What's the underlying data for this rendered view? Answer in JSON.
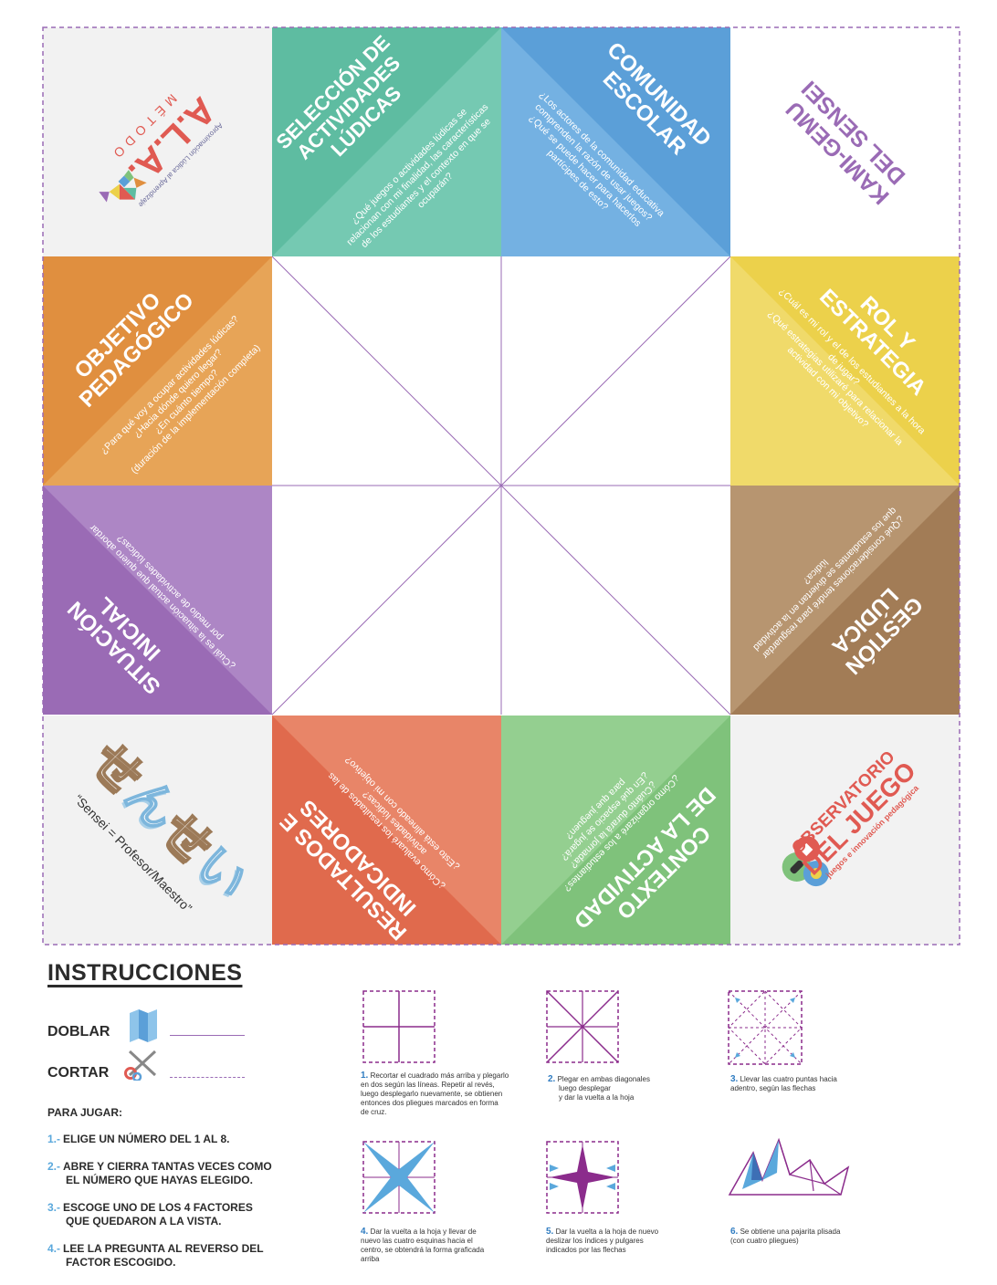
{
  "tiles": {
    "seleccion": {
      "title": [
        "SELECCIÓN DE",
        "ACTIVIDADES",
        "LÚDICAS"
      ],
      "question": [
        "¿Qué juegos o actividades lúdicas se",
        "relacionan con mi finalidad, las características",
        "de los estudiantes y el contexto en que se",
        "ocuparán?"
      ]
    },
    "comunidad": {
      "title": [
        "COMUNIDAD",
        "ESCOLAR"
      ],
      "question": [
        "¿Los actores de la comunidad educativa",
        "comprenden la razón de usar juegos?",
        "¿Qué se puede hacer para hacerlos",
        "partícipes de esto?"
      ]
    },
    "kami": {
      "title": [
        "KAMI-GEMU",
        "DEL SENSEI"
      ]
    },
    "objetivo": {
      "title": [
        "OBJETIVO",
        "PEDAGÓGICO"
      ],
      "question": [
        "¿Para qué voy a ocupar actividades lúdicas?",
        "¿Hacia dónde quiero llegar?",
        "¿En cuánto tiempo?",
        "(duración de la implementación completa)"
      ]
    },
    "rol": {
      "title": [
        "ROL Y",
        "ESTRATEGIA"
      ],
      "question": [
        "¿Cuál es mi rol y el de los estudiantes a la hora",
        "de jugar?",
        "¿Qué estrategias utilizaré para relacionar la",
        "actividad con mi objetivo?"
      ]
    },
    "situacion": {
      "title": [
        "SITUACIÓN",
        "INICIAL"
      ],
      "question": [
        "¿Cuál es la situación actual que quiero abordar",
        "por medio de actividades lúdicas?"
      ]
    },
    "gestion": {
      "title": [
        "GESTIÓN",
        "LÚDICA"
      ],
      "question": [
        "¿Qué consideraciones tendré para resguardar",
        "que los estudiantes se diviertan en la actividad",
        "lúdica?"
      ]
    },
    "resultados": {
      "title": [
        "RESULTADOS E",
        "INDICADORES"
      ],
      "question": [
        "¿Cómo evaluaré los resultados de las",
        "actividades lúdicas?",
        "¿Esto está alineado con mi objetivo?"
      ]
    },
    "contexto": {
      "title": [
        "CONTEXTO",
        "DE LA ACTIVIDAD"
      ],
      "question": [
        "¿Cómo organizaré a los estudiantes?",
        "¿Cuánto durará la jornada?",
        "¿En qué espacio se jugará?",
        "para que jueguen?"
      ]
    }
  },
  "logos": {
    "ala": {
      "top": "Aproximación Lúdica al Aprendizaje",
      "main": "A.L.A.",
      "sub": "MÉTODO"
    },
    "sensei": {
      "caption": "“Sensei = Profesor/Maestro”"
    },
    "observatorio": {
      "line1": "OBSERVATORIO",
      "line2": "DEL JUEGO",
      "tagline": "juegos e innovación pedagógica"
    }
  },
  "instructions": {
    "title": "INSTRUCCIONES",
    "doblar": "DOBLAR",
    "cortar": "CORTAR",
    "para_jugar": "PARA JUGAR:",
    "steps": [
      {
        "num": "1.-",
        "line1": "ELIGE UN NÚMERO DEL 1 AL 8.",
        "line2": ""
      },
      {
        "num": "2.-",
        "line1": "ABRE Y CIERRA TANTAS VECES COMO",
        "line2": "EL NÚMERO QUE HAYAS ELEGIDO."
      },
      {
        "num": "3.-",
        "line1": "ESCOGE UNO DE LOS 4 FACTORES",
        "line2": "QUE QUEDARON A LA VISTA."
      },
      {
        "num": "4.-",
        "line1": "LEE LA PREGUNTA AL REVERSO DEL",
        "line2": "FACTOR ESCOGIDO."
      }
    ],
    "diagrams": [
      {
        "num": "1.",
        "lines": [
          "Recortar el cuadrado más arriba y plegarlo",
          "en dos según las líneas. Repetir al revés,",
          "luego desplegarlo nuevamente, se obtienen",
          "entonces dos pliegues marcados en forma",
          "de cruz."
        ]
      },
      {
        "num": "2.",
        "lines": [
          "Plegar en ambas diagonales",
          "luego desplegar",
          "y dar la vuelta a la hoja"
        ]
      },
      {
        "num": "3.",
        "lines": [
          "Llevar las cuatro puntas hacia",
          "adentro, según las flechas"
        ]
      },
      {
        "num": "4.",
        "lines": [
          "Dar la vuelta a la hoja y llevar de",
          "nuevo las cuatro esquinas hacia el",
          "centro, se obtendrá  la forma graficada",
          "arriba"
        ]
      },
      {
        "num": "5.",
        "lines": [
          "Dar la vuelta a la hoja de nuevo",
          "deslizar los índices y pulgares",
          "indicados por las flechas"
        ]
      },
      {
        "num": "6.",
        "lines": [
          "Se obtiene una pajarita plisada",
          "(con cuatro pliegues)"
        ]
      }
    ]
  },
  "colors": {
    "teal": "#5ebca1",
    "blue": "#5b9fd8",
    "orange": "#e08f3f",
    "yellow": "#ecd14b",
    "purple": "#9a6bb5",
    "brown": "#a27c56",
    "red": "#e06a4d",
    "green": "#7fc27b",
    "fold_line": "#9a6bb5",
    "logo_red": "#e05a52",
    "diagram": "#8b2c8c",
    "diagram_blue": "#5aa8dc"
  }
}
